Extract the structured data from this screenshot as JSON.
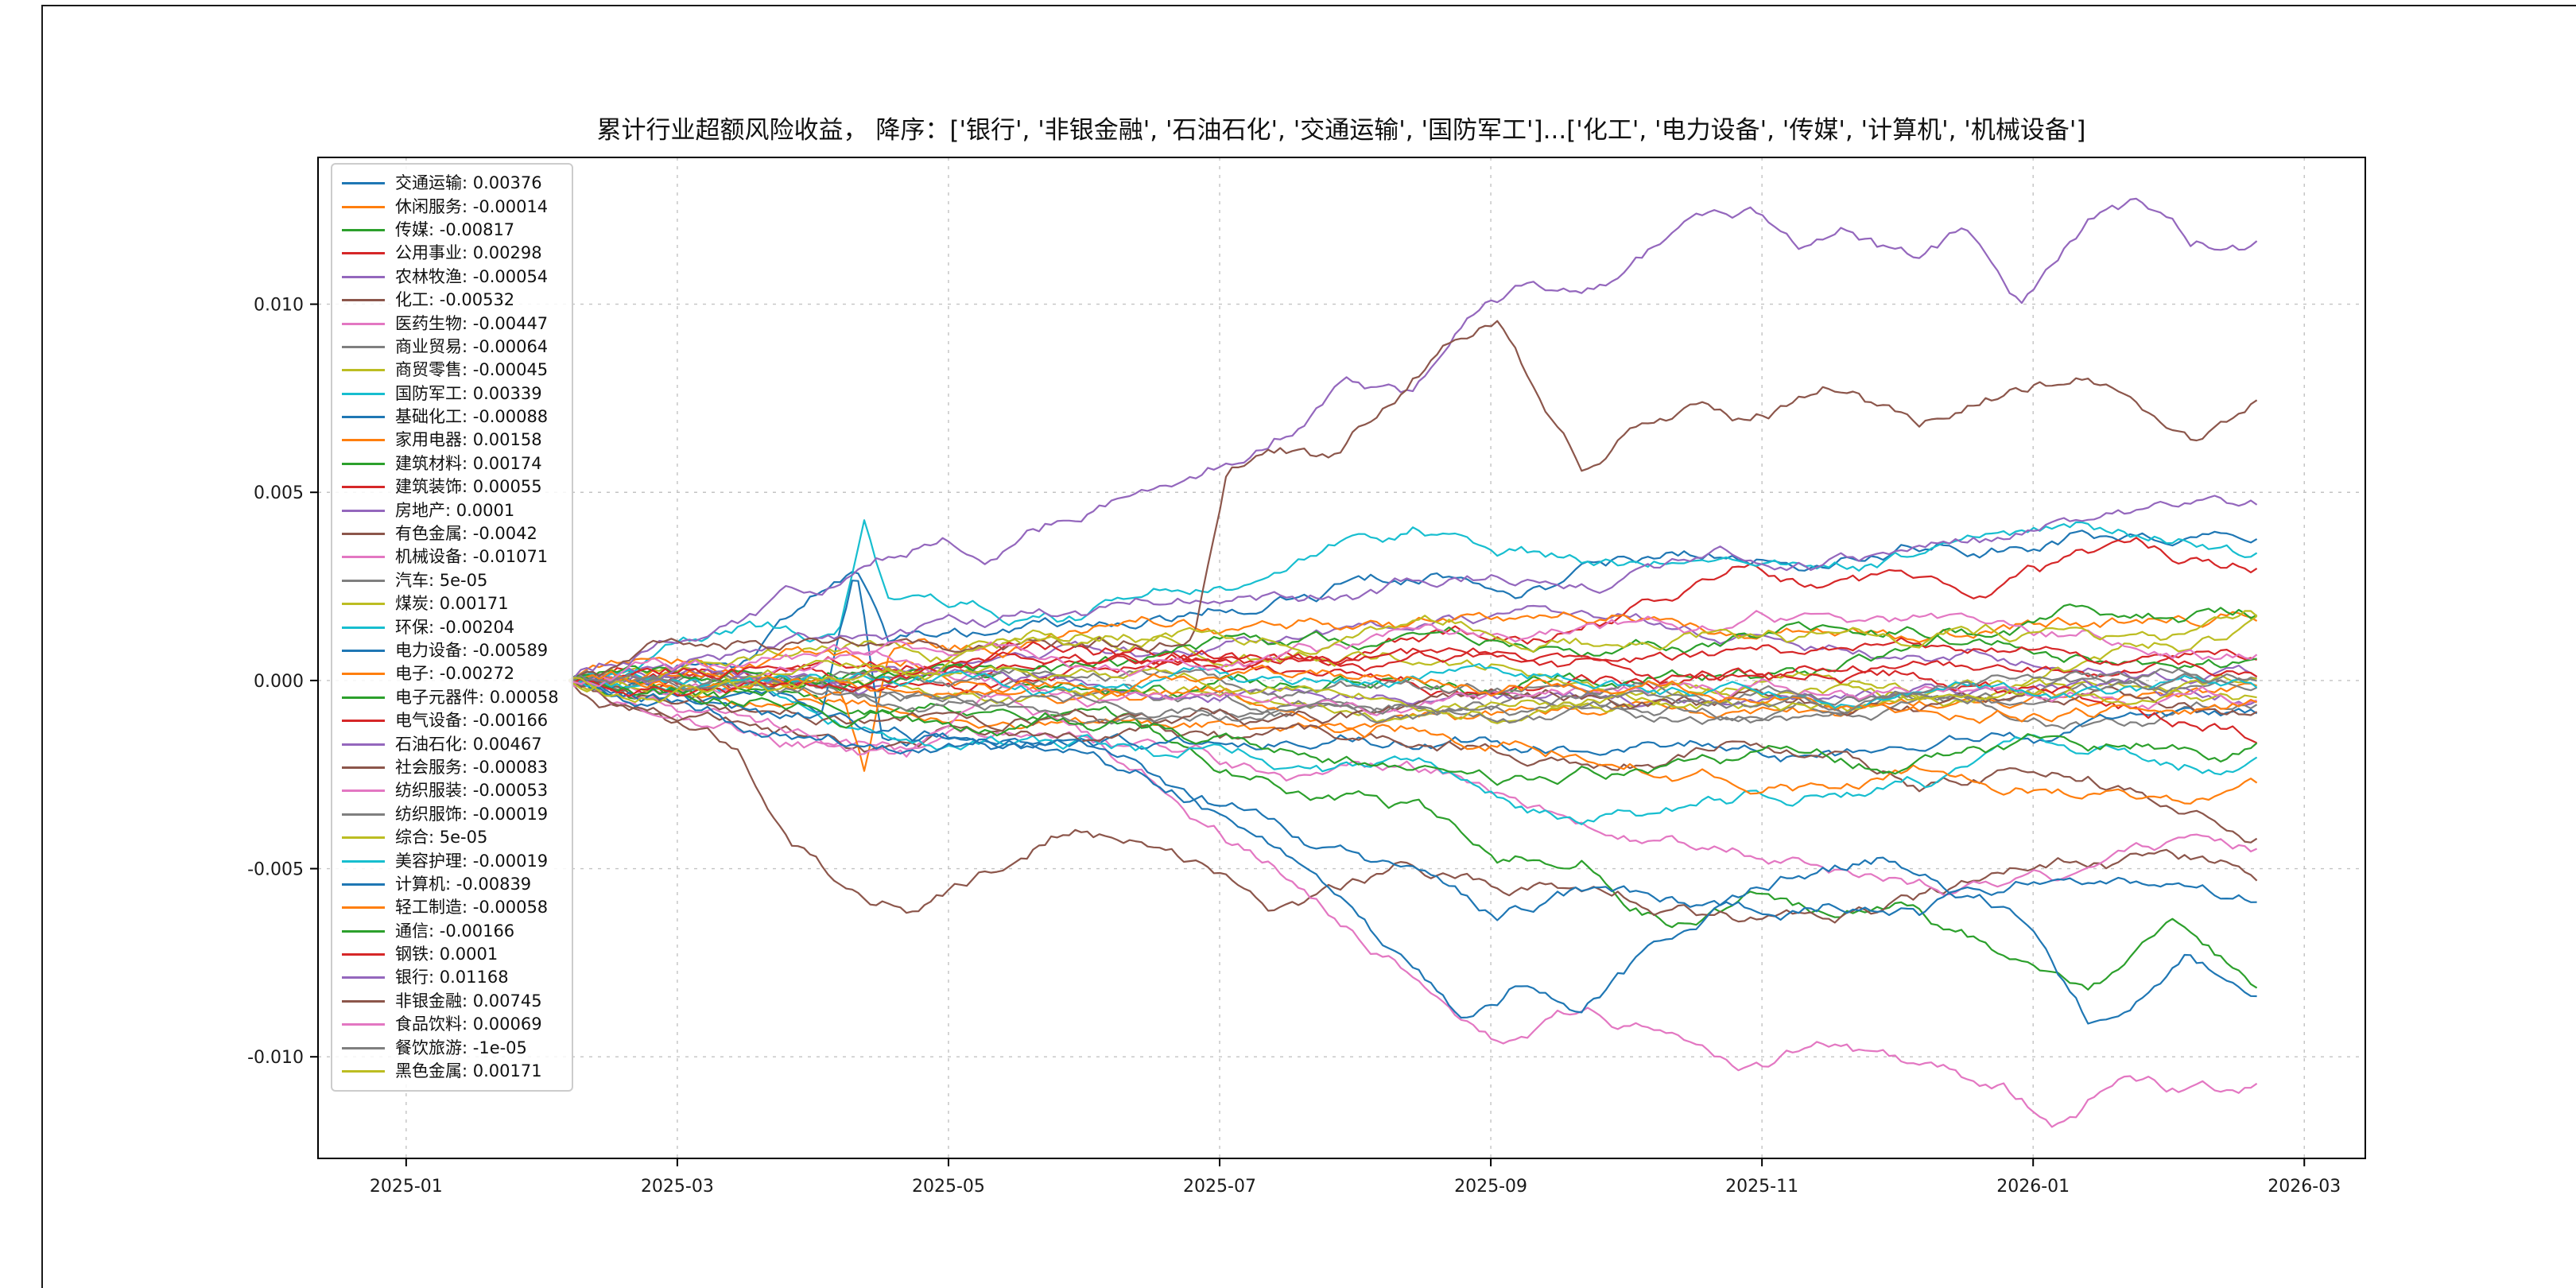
{
  "title": "累计行业超额风险收益，  降序：['银行', '非银金融', '石油石化', '交通运输', '国防军工']...['化工', '电力设备', '传媒', '计算机', '机械设备']",
  "palette": [
    "#1f77b4",
    "#ff7f0e",
    "#2ca02c",
    "#d62728",
    "#9467bd",
    "#8c564b",
    "#e377c2",
    "#7f7f7f",
    "#bcbd22",
    "#17becf"
  ],
  "chart_data": {
    "type": "line",
    "title": "累计行业超额风险收益，降序",
    "xlabel": "",
    "ylabel": "",
    "grid": "dashed",
    "legend_position": "upper-left",
    "x_tick_labels": [
      "2025-01",
      "2025-03",
      "2025-05",
      "2025-07",
      "2025-09",
      "2025-11",
      "2026-01",
      "2026-03"
    ],
    "x_tick_months": [
      0,
      2,
      4,
      6,
      8,
      10,
      12,
      14
    ],
    "xlim_months": [
      -0.65,
      14.45
    ],
    "y_tick_labels": [
      "0.010",
      "0.005",
      "0.000",
      "-0.005",
      "-0.010"
    ],
    "y_tick_values": [
      0.01,
      0.005,
      0.0,
      -0.005,
      -0.01
    ],
    "ylim": [
      -0.0127,
      0.0139
    ],
    "data_span_months": [
      1.2,
      13.65
    ],
    "series": [
      {
        "name": "交通运输",
        "value": "0.00376",
        "waypoints": [
          [
            0,
            0
          ],
          [
            0.1,
            0.0005
          ],
          [
            0.17,
            0.0028
          ],
          [
            0.19,
            0.0008
          ],
          [
            0.3,
            0.0008
          ],
          [
            0.4,
            0.0015
          ],
          [
            0.5,
            0.002
          ],
          [
            0.6,
            0.0025
          ],
          [
            0.7,
            0.003
          ],
          [
            0.8,
            0.0035
          ],
          [
            0.9,
            0.004
          ],
          [
            1,
            0.00376
          ]
        ]
      },
      {
        "name": "休闲服务",
        "value": "-0.00014"
      },
      {
        "name": "传媒",
        "value": "-0.00817",
        "waypoints": [
          [
            0,
            0
          ],
          [
            0.15,
            -0.001
          ],
          [
            0.3,
            -0.0005
          ],
          [
            0.4,
            -0.002
          ],
          [
            0.5,
            -0.003
          ],
          [
            0.55,
            -0.0045
          ],
          [
            0.6,
            -0.004
          ],
          [
            0.65,
            -0.005
          ],
          [
            0.7,
            -0.0045
          ],
          [
            0.75,
            -0.0055
          ],
          [
            0.8,
            -0.005
          ],
          [
            0.85,
            -0.006
          ],
          [
            0.9,
            -0.0075
          ],
          [
            0.95,
            -0.006
          ],
          [
            1,
            -0.00817
          ]
        ]
      },
      {
        "name": "公用事业",
        "value": "0.00298",
        "waypoints": [
          [
            0,
            0
          ],
          [
            0.2,
            0.0005
          ],
          [
            0.4,
            0.001
          ],
          [
            0.5,
            0.0015
          ],
          [
            0.6,
            0.002
          ],
          [
            0.7,
            0.0035
          ],
          [
            0.8,
            0.003
          ],
          [
            0.9,
            0.0035
          ],
          [
            1,
            0.00298
          ]
        ]
      },
      {
        "name": "农林牧渔",
        "value": "-0.00054"
      },
      {
        "name": "化工",
        "value": "-0.00532",
        "waypoints": [
          [
            0,
            0
          ],
          [
            0.05,
            -0.001
          ],
          [
            0.1,
            -0.0025
          ],
          [
            0.13,
            -0.0045
          ],
          [
            0.17,
            -0.006
          ],
          [
            0.2,
            -0.0063
          ],
          [
            0.25,
            -0.005
          ],
          [
            0.3,
            -0.0035
          ],
          [
            0.35,
            -0.004
          ],
          [
            0.42,
            -0.0055
          ],
          [
            0.5,
            -0.0045
          ],
          [
            0.6,
            -0.005
          ],
          [
            0.7,
            -0.0055
          ],
          [
            0.8,
            -0.005
          ],
          [
            0.9,
            -0.0048
          ],
          [
            1,
            -0.00532
          ]
        ]
      },
      {
        "name": "医药生物",
        "value": "-0.00447",
        "waypoints": [
          [
            0,
            0
          ],
          [
            0.1,
            -0.001
          ],
          [
            0.2,
            -0.0015
          ],
          [
            0.3,
            -0.001
          ],
          [
            0.4,
            -0.002
          ],
          [
            0.5,
            -0.0025
          ],
          [
            0.6,
            -0.003
          ],
          [
            0.7,
            -0.0035
          ],
          [
            0.8,
            -0.004
          ],
          [
            0.9,
            -0.0045
          ],
          [
            1,
            -0.00447
          ]
        ]
      },
      {
        "name": "商业贸易",
        "value": "-0.00064"
      },
      {
        "name": "商贸零售",
        "value": "-0.00045"
      },
      {
        "name": "国防军工",
        "value": "0.00339",
        "waypoints": [
          [
            0,
            0
          ],
          [
            0.1,
            0.001
          ],
          [
            0.16,
            0.0008
          ],
          [
            0.175,
            0.0035
          ],
          [
            0.19,
            0.001
          ],
          [
            0.3,
            0.001
          ],
          [
            0.4,
            0.002
          ],
          [
            0.5,
            0.003
          ],
          [
            0.6,
            0.0025
          ],
          [
            0.7,
            0.003
          ],
          [
            0.8,
            0.0035
          ],
          [
            0.9,
            0.004
          ],
          [
            1,
            0.00339
          ]
        ]
      },
      {
        "name": "基础化工",
        "value": "-0.00088",
        "waypoints": [
          [
            0,
            0
          ],
          [
            0.15,
            -0.0005
          ],
          [
            0.17,
            0.0032
          ],
          [
            0.185,
            -0.0012
          ],
          [
            0.5,
            -0.0008
          ],
          [
            0.75,
            -0.0012
          ],
          [
            1,
            -0.00088
          ]
        ]
      },
      {
        "name": "家用电器",
        "value": "0.00158",
        "waypoints": [
          [
            0,
            0
          ],
          [
            0.16,
            -0.0005
          ],
          [
            0.175,
            -0.0026
          ],
          [
            0.19,
            0.0005
          ],
          [
            0.4,
            0.0005
          ],
          [
            0.6,
            0.001
          ],
          [
            0.8,
            0.0014
          ],
          [
            1,
            0.00158
          ]
        ]
      },
      {
        "name": "建筑材料",
        "value": "0.00174"
      },
      {
        "name": "建筑装饰",
        "value": "0.00055"
      },
      {
        "name": "房地产",
        "value": "0.0001"
      },
      {
        "name": "有色金属",
        "value": "-0.0042",
        "waypoints": [
          [
            0,
            0
          ],
          [
            0.1,
            -0.0015
          ],
          [
            0.2,
            -0.002
          ],
          [
            0.3,
            -0.001
          ],
          [
            0.4,
            -0.002
          ],
          [
            0.5,
            -0.003
          ],
          [
            0.6,
            -0.0035
          ],
          [
            0.7,
            -0.003
          ],
          [
            0.8,
            -0.004
          ],
          [
            0.9,
            -0.0035
          ],
          [
            1,
            -0.0042
          ]
        ]
      },
      {
        "name": "机械设备",
        "value": "-0.01071",
        "waypoints": [
          [
            0,
            0
          ],
          [
            0.08,
            -0.0008
          ],
          [
            0.15,
            -0.002
          ],
          [
            0.2,
            -0.0025
          ],
          [
            0.25,
            -0.0015
          ],
          [
            0.3,
            -0.002
          ],
          [
            0.35,
            -0.003
          ],
          [
            0.4,
            -0.0045
          ],
          [
            0.45,
            -0.006
          ],
          [
            0.5,
            -0.0075
          ],
          [
            0.55,
            -0.009
          ],
          [
            0.6,
            -0.0085
          ],
          [
            0.65,
            -0.009
          ],
          [
            0.7,
            -0.0095
          ],
          [
            0.75,
            -0.009
          ],
          [
            0.8,
            -0.0098
          ],
          [
            0.85,
            -0.0105
          ],
          [
            0.88,
            -0.0115
          ],
          [
            0.92,
            -0.0102
          ],
          [
            0.96,
            -0.0108
          ],
          [
            1,
            -0.01071
          ]
        ]
      },
      {
        "name": "汽车",
        "value": "5e-05"
      },
      {
        "name": "煤炭",
        "value": "0.00171"
      },
      {
        "name": "环保",
        "value": "-0.00204",
        "waypoints": [
          [
            0,
            0
          ],
          [
            0.2,
            -0.0005
          ],
          [
            0.4,
            -0.001
          ],
          [
            0.6,
            -0.0025
          ],
          [
            0.8,
            -0.002
          ],
          [
            1,
            -0.00204
          ]
        ]
      },
      {
        "name": "电力设备",
        "value": "-0.00589",
        "waypoints": [
          [
            0,
            0
          ],
          [
            0.1,
            -0.001
          ],
          [
            0.2,
            -0.0015
          ],
          [
            0.3,
            -0.001
          ],
          [
            0.4,
            -0.0025
          ],
          [
            0.5,
            -0.004
          ],
          [
            0.55,
            -0.0055
          ],
          [
            0.6,
            -0.005
          ],
          [
            0.65,
            -0.0055
          ],
          [
            0.7,
            -0.006
          ],
          [
            0.75,
            -0.0055
          ],
          [
            0.8,
            -0.006
          ],
          [
            0.85,
            -0.0055
          ],
          [
            0.9,
            -0.005
          ],
          [
            0.95,
            -0.0055
          ],
          [
            1,
            -0.00589
          ]
        ]
      },
      {
        "name": "电子",
        "value": "-0.00272",
        "waypoints": [
          [
            0,
            0
          ],
          [
            0.2,
            -0.0008
          ],
          [
            0.4,
            -0.0015
          ],
          [
            0.6,
            -0.002
          ],
          [
            0.8,
            -0.0025
          ],
          [
            1,
            -0.00272
          ]
        ]
      },
      {
        "name": "电子元器件",
        "value": "0.00058"
      },
      {
        "name": "电气设备",
        "value": "-0.00166"
      },
      {
        "name": "石油石化",
        "value": "0.00467",
        "waypoints": [
          [
            0,
            0
          ],
          [
            0.1,
            0.0005
          ],
          [
            0.2,
            0.001
          ],
          [
            0.3,
            0.0015
          ],
          [
            0.4,
            0.002
          ],
          [
            0.5,
            0.0025
          ],
          [
            0.6,
            0.003
          ],
          [
            0.7,
            0.0035
          ],
          [
            0.8,
            0.004
          ],
          [
            0.9,
            0.0045
          ],
          [
            1,
            0.00467
          ]
        ]
      },
      {
        "name": "社会服务",
        "value": "-0.00083"
      },
      {
        "name": "纺织服装",
        "value": "-0.00053"
      },
      {
        "name": "纺织服饰",
        "value": "-0.00019"
      },
      {
        "name": "综合",
        "value": "5e-05"
      },
      {
        "name": "美容护理",
        "value": "-0.00019"
      },
      {
        "name": "计算机",
        "value": "-0.00839",
        "waypoints": [
          [
            0,
            0
          ],
          [
            0.1,
            -0.0005
          ],
          [
            0.2,
            -0.001
          ],
          [
            0.3,
            -0.001
          ],
          [
            0.35,
            -0.002
          ],
          [
            0.4,
            -0.0035
          ],
          [
            0.45,
            -0.005
          ],
          [
            0.5,
            -0.0075
          ],
          [
            0.53,
            -0.009
          ],
          [
            0.56,
            -0.008
          ],
          [
            0.6,
            -0.0085
          ],
          [
            0.63,
            -0.0075
          ],
          [
            0.68,
            -0.0065
          ],
          [
            0.72,
            -0.006
          ],
          [
            0.78,
            -0.0055
          ],
          [
            0.82,
            -0.006
          ],
          [
            0.86,
            -0.0065
          ],
          [
            0.9,
            -0.0095
          ],
          [
            0.93,
            -0.0085
          ],
          [
            0.96,
            -0.0075
          ],
          [
            1,
            -0.00839
          ]
        ]
      },
      {
        "name": "轻工制造",
        "value": "-0.00058"
      },
      {
        "name": "通信",
        "value": "-0.00166"
      },
      {
        "name": "钢铁",
        "value": "0.0001"
      },
      {
        "name": "银行",
        "value": "0.01168",
        "waypoints": [
          [
            0,
            0
          ],
          [
            0.05,
            0.001
          ],
          [
            0.1,
            0.002
          ],
          [
            0.15,
            0.003
          ],
          [
            0.18,
            0.0035
          ],
          [
            0.22,
            0.0042
          ],
          [
            0.25,
            0.004
          ],
          [
            0.3,
            0.005
          ],
          [
            0.35,
            0.0065
          ],
          [
            0.4,
            0.0075
          ],
          [
            0.43,
            0.0085
          ],
          [
            0.46,
            0.0095
          ],
          [
            0.5,
            0.009
          ],
          [
            0.53,
            0.0105
          ],
          [
            0.57,
            0.0115
          ],
          [
            0.6,
            0.011
          ],
          [
            0.63,
            0.0118
          ],
          [
            0.66,
            0.0125
          ],
          [
            0.7,
            0.0128
          ],
          [
            0.73,
            0.012
          ],
          [
            0.76,
            0.0125
          ],
          [
            0.8,
            0.0115
          ],
          [
            0.83,
            0.0122
          ],
          [
            0.86,
            0.0105
          ],
          [
            0.9,
            0.0125
          ],
          [
            0.93,
            0.0128
          ],
          [
            0.96,
            0.0115
          ],
          [
            1,
            0.01168
          ]
        ]
      },
      {
        "name": "非银金融",
        "value": "0.00745",
        "waypoints": [
          [
            0,
            0
          ],
          [
            0.1,
            0.0005
          ],
          [
            0.2,
            0.001
          ],
          [
            0.3,
            0.0008
          ],
          [
            0.37,
            0.001
          ],
          [
            0.39,
            0.0058
          ],
          [
            0.42,
            0.0062
          ],
          [
            0.45,
            0.0055
          ],
          [
            0.48,
            0.0068
          ],
          [
            0.52,
            0.0085
          ],
          [
            0.55,
            0.0093
          ],
          [
            0.57,
            0.0075
          ],
          [
            0.6,
            0.0055
          ],
          [
            0.63,
            0.007
          ],
          [
            0.67,
            0.0078
          ],
          [
            0.7,
            0.0072
          ],
          [
            0.75,
            0.008
          ],
          [
            0.8,
            0.0068
          ],
          [
            0.85,
            0.0075
          ],
          [
            0.9,
            0.008
          ],
          [
            0.93,
            0.0072
          ],
          [
            0.96,
            0.0062
          ],
          [
            1,
            0.00745
          ]
        ]
      },
      {
        "name": "食品饮料",
        "value": "0.00069"
      },
      {
        "name": "餐饮旅游",
        "value": "-1e-05"
      },
      {
        "name": "黑色金属",
        "value": "0.00171"
      }
    ]
  }
}
